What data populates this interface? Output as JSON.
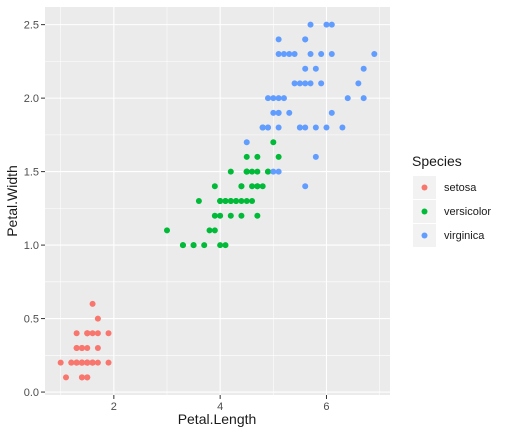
{
  "chart_data": {
    "type": "scatter",
    "xlabel": "Petal.Length",
    "ylabel": "Petal.Width",
    "xlim": [
      1.0,
      6.9
    ],
    "ylim": [
      0.1,
      2.5
    ],
    "x_ticks": [
      2,
      4,
      6
    ],
    "x_tick_labels": [
      "2",
      "4",
      "6"
    ],
    "y_ticks": [
      0.0,
      0.5,
      1.0,
      1.5,
      2.0,
      2.5
    ],
    "y_tick_labels": [
      "0.0",
      "0.5",
      "1.0",
      "1.5",
      "2.0",
      "2.5"
    ],
    "grid": true,
    "legend": {
      "title": "Species",
      "position": "right"
    },
    "series": [
      {
        "name": "setosa",
        "color": "#F8766D",
        "points": [
          [
            1.4,
            0.2
          ],
          [
            1.4,
            0.2
          ],
          [
            1.3,
            0.2
          ],
          [
            1.5,
            0.2
          ],
          [
            1.4,
            0.2
          ],
          [
            1.7,
            0.4
          ],
          [
            1.4,
            0.3
          ],
          [
            1.5,
            0.2
          ],
          [
            1.4,
            0.2
          ],
          [
            1.5,
            0.1
          ],
          [
            1.5,
            0.2
          ],
          [
            1.6,
            0.2
          ],
          [
            1.4,
            0.1
          ],
          [
            1.1,
            0.1
          ],
          [
            1.2,
            0.2
          ],
          [
            1.5,
            0.4
          ],
          [
            1.3,
            0.4
          ],
          [
            1.4,
            0.3
          ],
          [
            1.7,
            0.3
          ],
          [
            1.5,
            0.3
          ],
          [
            1.7,
            0.2
          ],
          [
            1.5,
            0.4
          ],
          [
            1.0,
            0.2
          ],
          [
            1.7,
            0.5
          ],
          [
            1.9,
            0.2
          ],
          [
            1.6,
            0.2
          ],
          [
            1.6,
            0.4
          ],
          [
            1.5,
            0.2
          ],
          [
            1.4,
            0.2
          ],
          [
            1.6,
            0.2
          ],
          [
            1.6,
            0.2
          ],
          [
            1.5,
            0.4
          ],
          [
            1.5,
            0.1
          ],
          [
            1.4,
            0.2
          ],
          [
            1.5,
            0.2
          ],
          [
            1.2,
            0.2
          ],
          [
            1.3,
            0.2
          ],
          [
            1.4,
            0.1
          ],
          [
            1.3,
            0.2
          ],
          [
            1.5,
            0.2
          ],
          [
            1.3,
            0.3
          ],
          [
            1.3,
            0.3
          ],
          [
            1.3,
            0.2
          ],
          [
            1.6,
            0.6
          ],
          [
            1.9,
            0.4
          ],
          [
            1.4,
            0.3
          ],
          [
            1.6,
            0.2
          ],
          [
            1.4,
            0.2
          ],
          [
            1.5,
            0.2
          ],
          [
            1.4,
            0.2
          ]
        ]
      },
      {
        "name": "versicolor",
        "color": "#00BA38",
        "points": [
          [
            4.7,
            1.4
          ],
          [
            4.5,
            1.5
          ],
          [
            4.9,
            1.5
          ],
          [
            4.0,
            1.3
          ],
          [
            4.6,
            1.5
          ],
          [
            4.5,
            1.3
          ],
          [
            4.7,
            1.6
          ],
          [
            3.3,
            1.0
          ],
          [
            4.6,
            1.3
          ],
          [
            3.9,
            1.4
          ],
          [
            3.5,
            1.0
          ],
          [
            4.2,
            1.5
          ],
          [
            4.0,
            1.0
          ],
          [
            4.7,
            1.4
          ],
          [
            3.6,
            1.3
          ],
          [
            4.4,
            1.4
          ],
          [
            4.5,
            1.5
          ],
          [
            4.1,
            1.0
          ],
          [
            4.5,
            1.5
          ],
          [
            3.9,
            1.1
          ],
          [
            4.8,
            1.8
          ],
          [
            4.0,
            1.3
          ],
          [
            4.9,
            1.5
          ],
          [
            4.7,
            1.2
          ],
          [
            4.3,
            1.3
          ],
          [
            4.4,
            1.4
          ],
          [
            4.8,
            1.4
          ],
          [
            5.0,
            1.7
          ],
          [
            4.5,
            1.5
          ],
          [
            3.5,
            1.0
          ],
          [
            3.8,
            1.1
          ],
          [
            3.7,
            1.0
          ],
          [
            3.9,
            1.2
          ],
          [
            5.1,
            1.6
          ],
          [
            4.5,
            1.5
          ],
          [
            4.5,
            1.6
          ],
          [
            4.7,
            1.5
          ],
          [
            4.4,
            1.3
          ],
          [
            4.1,
            1.3
          ],
          [
            4.0,
            1.3
          ],
          [
            4.4,
            1.2
          ],
          [
            4.6,
            1.4
          ],
          [
            4.0,
            1.2
          ],
          [
            3.3,
            1.0
          ],
          [
            4.2,
            1.3
          ],
          [
            4.2,
            1.2
          ],
          [
            4.2,
            1.3
          ],
          [
            4.3,
            1.3
          ],
          [
            3.0,
            1.1
          ],
          [
            4.1,
            1.3
          ]
        ]
      },
      {
        "name": "virginica",
        "color": "#619CFF",
        "points": [
          [
            6.0,
            2.5
          ],
          [
            5.1,
            1.9
          ],
          [
            5.9,
            2.1
          ],
          [
            5.6,
            1.8
          ],
          [
            5.8,
            2.2
          ],
          [
            6.6,
            2.1
          ],
          [
            4.5,
            1.7
          ],
          [
            6.3,
            1.8
          ],
          [
            5.8,
            1.8
          ],
          [
            6.1,
            2.5
          ],
          [
            5.1,
            2.0
          ],
          [
            5.3,
            1.9
          ],
          [
            5.5,
            2.1
          ],
          [
            5.0,
            2.0
          ],
          [
            5.1,
            2.4
          ],
          [
            5.3,
            2.3
          ],
          [
            5.5,
            1.8
          ],
          [
            6.7,
            2.2
          ],
          [
            6.9,
            2.3
          ],
          [
            5.0,
            1.5
          ],
          [
            5.7,
            2.3
          ],
          [
            4.9,
            2.0
          ],
          [
            6.7,
            2.0
          ],
          [
            4.9,
            1.8
          ],
          [
            5.7,
            2.1
          ],
          [
            6.0,
            1.8
          ],
          [
            4.8,
            1.8
          ],
          [
            4.9,
            1.8
          ],
          [
            5.6,
            2.1
          ],
          [
            5.8,
            1.6
          ],
          [
            6.1,
            1.9
          ],
          [
            6.4,
            2.0
          ],
          [
            5.6,
            2.2
          ],
          [
            5.1,
            1.5
          ],
          [
            5.6,
            1.4
          ],
          [
            6.1,
            2.3
          ],
          [
            5.6,
            2.4
          ],
          [
            5.5,
            1.8
          ],
          [
            4.8,
            1.8
          ],
          [
            5.4,
            2.1
          ],
          [
            5.6,
            2.4
          ],
          [
            5.1,
            2.3
          ],
          [
            5.1,
            1.9
          ],
          [
            5.9,
            2.3
          ],
          [
            5.7,
            2.5
          ],
          [
            5.2,
            2.3
          ],
          [
            5.0,
            1.9
          ],
          [
            5.2,
            2.0
          ],
          [
            5.4,
            2.3
          ],
          [
            5.1,
            1.8
          ]
        ]
      }
    ]
  }
}
